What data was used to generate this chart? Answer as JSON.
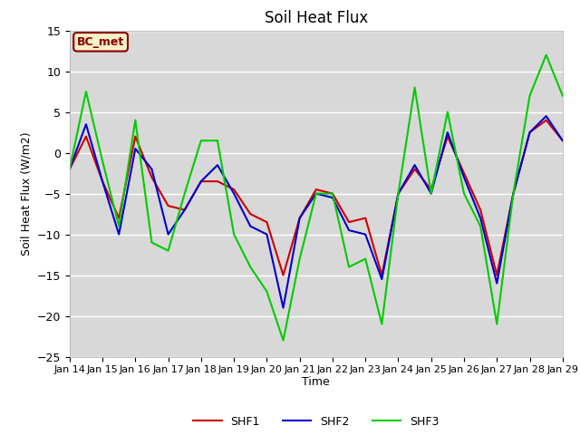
{
  "title": "Soil Heat Flux",
  "ylabel": "Soil Heat Flux (W/m2)",
  "xlabel": "Time",
  "ylim": [
    -25,
    15
  ],
  "xtick_labels": [
    "Jan 14",
    "Jan 15",
    "Jan 16",
    "Jan 17",
    "Jan 18",
    "Jan 19",
    "Jan 20",
    "Jan 21",
    "Jan 22",
    "Jan 23",
    "Jan 24",
    "Jan 25",
    "Jan 26",
    "Jan 27",
    "Jan 28",
    "Jan 29"
  ],
  "bg_color": "#d8d8d8",
  "annotation_text": "BC_met",
  "annotation_color": "#8b0000",
  "annotation_bg": "#f5f0c8",
  "shf1_color": "#cc0000",
  "shf2_color": "#0000cc",
  "shf3_color": "#00cc00",
  "shf1": [
    -2.0,
    2.0,
    -3.5,
    -8.0,
    2.0,
    -3.0,
    -6.5,
    -7.0,
    -3.5,
    -3.5,
    -4.5,
    -7.5,
    -8.5,
    -15.0,
    -8.0,
    -4.5,
    -5.0,
    -8.5,
    -8.0,
    -15.0,
    -5.0,
    -2.0,
    -4.5,
    2.0,
    -2.5,
    -7.0,
    -15.0,
    -5.0,
    2.5,
    4.0,
    1.5
  ],
  "shf2": [
    -2.0,
    3.5,
    -3.5,
    -10.0,
    0.5,
    -2.0,
    -10.0,
    -7.0,
    -3.5,
    -1.5,
    -5.0,
    -9.0,
    -10.0,
    -19.0,
    -8.0,
    -5.0,
    -5.5,
    -9.5,
    -10.0,
    -15.5,
    -5.0,
    -1.5,
    -5.0,
    2.5,
    -3.0,
    -8.0,
    -16.0,
    -5.0,
    2.5,
    4.5,
    1.5
  ],
  "shf3": [
    -2.0,
    7.5,
    -1.0,
    -9.0,
    4.0,
    -11.0,
    -12.0,
    -5.0,
    1.5,
    1.5,
    -10.0,
    -14.0,
    -17.0,
    -23.0,
    -13.0,
    -5.0,
    -5.0,
    -14.0,
    -13.0,
    -21.0,
    -5.0,
    8.0,
    -5.0,
    5.0,
    -5.0,
    -9.0,
    -21.0,
    -5.0,
    7.0,
    12.0,
    7.0
  ],
  "x_days": [
    0.0,
    0.5,
    1.0,
    1.5,
    2.0,
    2.5,
    3.0,
    3.5,
    4.0,
    4.5,
    5.0,
    5.5,
    6.0,
    6.5,
    7.0,
    7.5,
    8.0,
    8.5,
    9.0,
    9.5,
    10.0,
    10.5,
    11.0,
    11.5,
    12.0,
    12.5,
    13.0,
    13.5,
    14.0,
    14.5,
    15.0
  ]
}
